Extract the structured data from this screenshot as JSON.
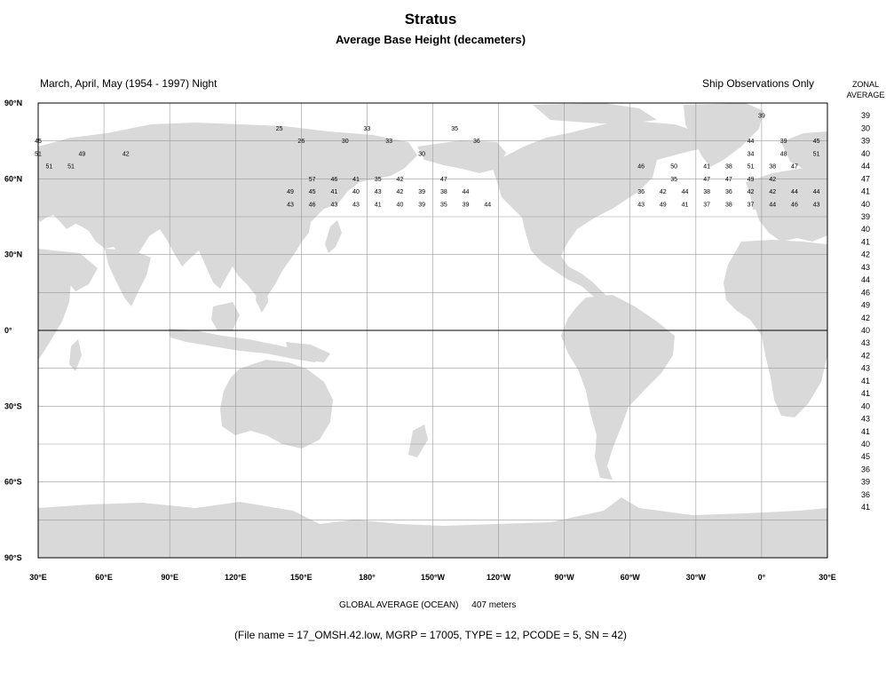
{
  "header": {
    "title": "Stratus",
    "subtitle": "Average Base Height (decameters)",
    "season": "March, April, May (1954 - 1997) Night",
    "source": "Ship Observations Only",
    "zonal_heading_1": "ZONAL",
    "zonal_heading_2": "AVERAGE"
  },
  "footer": {
    "global_label": "GLOBAL AVERAGE (OCEAN)",
    "global_value": "407 meters",
    "file_info": "(File name = 17_OMSH.42.low, MGRP = 17005, TYPE = 12, PCODE = 5, SN = 42)"
  },
  "colors": {
    "land": "#d9d9d9",
    "ocean": "#ffffff",
    "grid": "#999999",
    "equator": "#000000"
  },
  "axes": {
    "lat_labels": [
      {
        "lat": 90,
        "text": "90°N"
      },
      {
        "lat": 60,
        "text": "60°N"
      },
      {
        "lat": 30,
        "text": "30°N"
      },
      {
        "lat": 0,
        "text": "0°"
      },
      {
        "lat": -30,
        "text": "30°S"
      },
      {
        "lat": -60,
        "text": "60°S"
      },
      {
        "lat": -90,
        "text": "90°S"
      }
    ],
    "lon_labels": [
      {
        "lon": 30,
        "text": "30°E"
      },
      {
        "lon": 60,
        "text": "60°E"
      },
      {
        "lon": 90,
        "text": "90°E"
      },
      {
        "lon": 120,
        "text": "120°E"
      },
      {
        "lon": 150,
        "text": "150°E"
      },
      {
        "lon": 180,
        "text": "180°"
      },
      {
        "lon": 210,
        "text": "150°W"
      },
      {
        "lon": 240,
        "text": "120°W"
      },
      {
        "lon": 270,
        "text": "90°W"
      },
      {
        "lon": 300,
        "text": "60°W"
      },
      {
        "lon": 330,
        "text": "30°W"
      },
      {
        "lon": 360,
        "text": "0°"
      },
      {
        "lon": 390,
        "text": "30°E"
      }
    ]
  },
  "zonal_average": [
    {
      "lat": 85,
      "value": "39"
    },
    {
      "lat": 80,
      "value": "30"
    },
    {
      "lat": 75,
      "value": "39"
    },
    {
      "lat": 70,
      "value": "40"
    },
    {
      "lat": 65,
      "value": "44"
    },
    {
      "lat": 60,
      "value": "47"
    },
    {
      "lat": 55,
      "value": "41"
    },
    {
      "lat": 50,
      "value": "40"
    },
    {
      "lat": 45,
      "value": "39"
    },
    {
      "lat": 40,
      "value": "40"
    },
    {
      "lat": 35,
      "value": "41"
    },
    {
      "lat": 30,
      "value": "42"
    },
    {
      "lat": 25,
      "value": "43"
    },
    {
      "lat": 20,
      "value": "44"
    },
    {
      "lat": 15,
      "value": "46"
    },
    {
      "lat": 10,
      "value": "49"
    },
    {
      "lat": 5,
      "value": "42"
    },
    {
      "lat": 0,
      "value": "40"
    },
    {
      "lat": -5,
      "value": "43"
    },
    {
      "lat": -10,
      "value": "42"
    },
    {
      "lat": -15,
      "value": "43"
    },
    {
      "lat": -20,
      "value": "41"
    },
    {
      "lat": -25,
      "value": "41"
    },
    {
      "lat": -30,
      "value": "40"
    },
    {
      "lat": -35,
      "value": "43"
    },
    {
      "lat": -40,
      "value": "41"
    },
    {
      "lat": -45,
      "value": "40"
    },
    {
      "lat": -50,
      "value": "45"
    },
    {
      "lat": -55,
      "value": "36"
    },
    {
      "lat": -60,
      "value": "39"
    },
    {
      "lat": -65,
      "value": "36"
    },
    {
      "lat": -70,
      "value": "41"
    }
  ],
  "grid_rows": [
    {
      "lat": 85,
      "cells": [
        [
          0,
          "39"
        ]
      ]
    },
    {
      "lat": 80,
      "cells": [
        [
          140,
          "25"
        ],
        [
          180,
          "33"
        ],
        [
          220,
          "35"
        ]
      ]
    },
    {
      "lat": 75,
      "cells": [
        [
          30,
          "45"
        ],
        [
          150,
          "26"
        ],
        [
          170,
          "30"
        ],
        [
          190,
          "33"
        ],
        [
          230,
          "36"
        ],
        [
          355,
          "44"
        ],
        [
          370,
          "39"
        ],
        [
          385,
          "45"
        ]
      ]
    },
    {
      "lat": 70,
      "cells": [
        [
          30,
          "51"
        ],
        [
          50,
          "49"
        ],
        [
          70,
          "42"
        ],
        [
          205,
          "30"
        ],
        [
          355,
          "34"
        ],
        [
          370,
          "48"
        ],
        [
          385,
          "51"
        ]
      ]
    },
    {
      "lat": 65,
      "cells": [
        [
          35,
          "51"
        ],
        [
          45,
          "51"
        ],
        [
          305,
          "46"
        ],
        [
          320,
          "50"
        ],
        [
          335,
          "41"
        ],
        [
          345,
          "38"
        ],
        [
          355,
          "51"
        ],
        [
          365,
          "38"
        ],
        [
          375,
          "47"
        ]
      ]
    },
    {
      "lat": 60,
      "cells": [
        [
          155,
          "57"
        ],
        [
          165,
          "46"
        ],
        [
          175,
          "41"
        ],
        [
          185,
          "35"
        ],
        [
          195,
          "42"
        ],
        [
          215,
          "47"
        ],
        [
          320,
          "35"
        ],
        [
          335,
          "47"
        ],
        [
          345,
          "47"
        ],
        [
          355,
          "49"
        ],
        [
          365,
          "42"
        ]
      ]
    },
    {
      "lat": 55,
      "cells": [
        [
          145,
          "49"
        ],
        [
          155,
          "45"
        ],
        [
          165,
          "41"
        ],
        [
          175,
          "40"
        ],
        [
          185,
          "43"
        ],
        [
          195,
          "42"
        ],
        [
          205,
          "39"
        ],
        [
          215,
          "38"
        ],
        [
          225,
          "44"
        ],
        [
          305,
          "36"
        ],
        [
          315,
          "42"
        ],
        [
          325,
          "44"
        ],
        [
          335,
          "38"
        ],
        [
          345,
          "36"
        ],
        [
          355,
          "42"
        ],
        [
          365,
          "42"
        ],
        [
          375,
          "44"
        ],
        [
          385,
          "44"
        ]
      ]
    },
    {
      "lat": 50,
      "cells": [
        [
          145,
          "43"
        ],
        [
          155,
          "46"
        ],
        [
          165,
          "43"
        ],
        [
          175,
          "43"
        ],
        [
          185,
          "41"
        ],
        [
          195,
          "40"
        ],
        [
          205,
          "39"
        ],
        [
          215,
          "35"
        ],
        [
          225,
          "39"
        ],
        [
          235,
          "44"
        ],
        [
          305,
          "43"
        ],
        [
          315,
          "49"
        ],
        [
          325,
          "41"
        ],
        [
          335,
          "37"
        ],
        [
          345,
          "38"
        ],
        [
          355,
          "37"
        ],
        [
          365,
          "44"
        ],
        [
          375,
          "46"
        ],
        [
          385,
          "43"
        ]
      ]
    }
  ]
}
